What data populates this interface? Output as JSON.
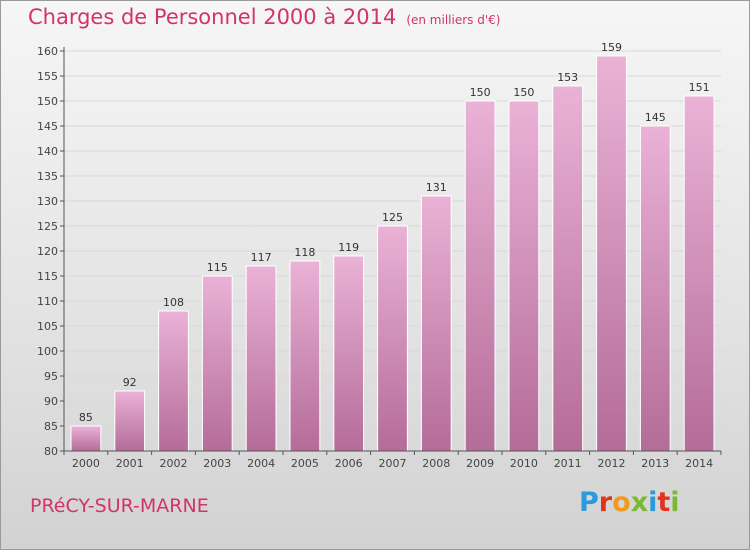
{
  "header": {
    "title": "Charges de Personnel 2000 à 2014",
    "unit": "(en milliers d'€)"
  },
  "footer": {
    "commune": "PRéCY-SUR-MARNE",
    "logo_text": "Proxiti"
  },
  "colors": {
    "bar_light": "#eab2d6",
    "bar_dark": "#b46c98",
    "title": "#d2336b",
    "axis": "#555555",
    "grid": "#d8d8d8",
    "logo": [
      "#2a9ad8",
      "#e2331f",
      "#f29a1f",
      "#7cb932",
      "#2a9ad8",
      "#e2331f",
      "#7cb932"
    ]
  },
  "chart_data": {
    "type": "bar",
    "title": "Charges de Personnel 2000 à 2014",
    "subtitle": "(en milliers d'€)",
    "xlabel": "",
    "ylabel": "",
    "categories": [
      "2000",
      "2001",
      "2002",
      "2003",
      "2004",
      "2005",
      "2006",
      "2007",
      "2008",
      "2009",
      "2010",
      "2011",
      "2012",
      "2013",
      "2014"
    ],
    "values": [
      85,
      92,
      108,
      115,
      117,
      118,
      119,
      125,
      131,
      150,
      150,
      153,
      159,
      145,
      151
    ],
    "ylim": [
      80,
      160
    ],
    "yticks": [
      80,
      85,
      90,
      95,
      100,
      105,
      110,
      115,
      120,
      125,
      130,
      135,
      140,
      145,
      150,
      155,
      160
    ],
    "grid": true,
    "legend": "none"
  }
}
